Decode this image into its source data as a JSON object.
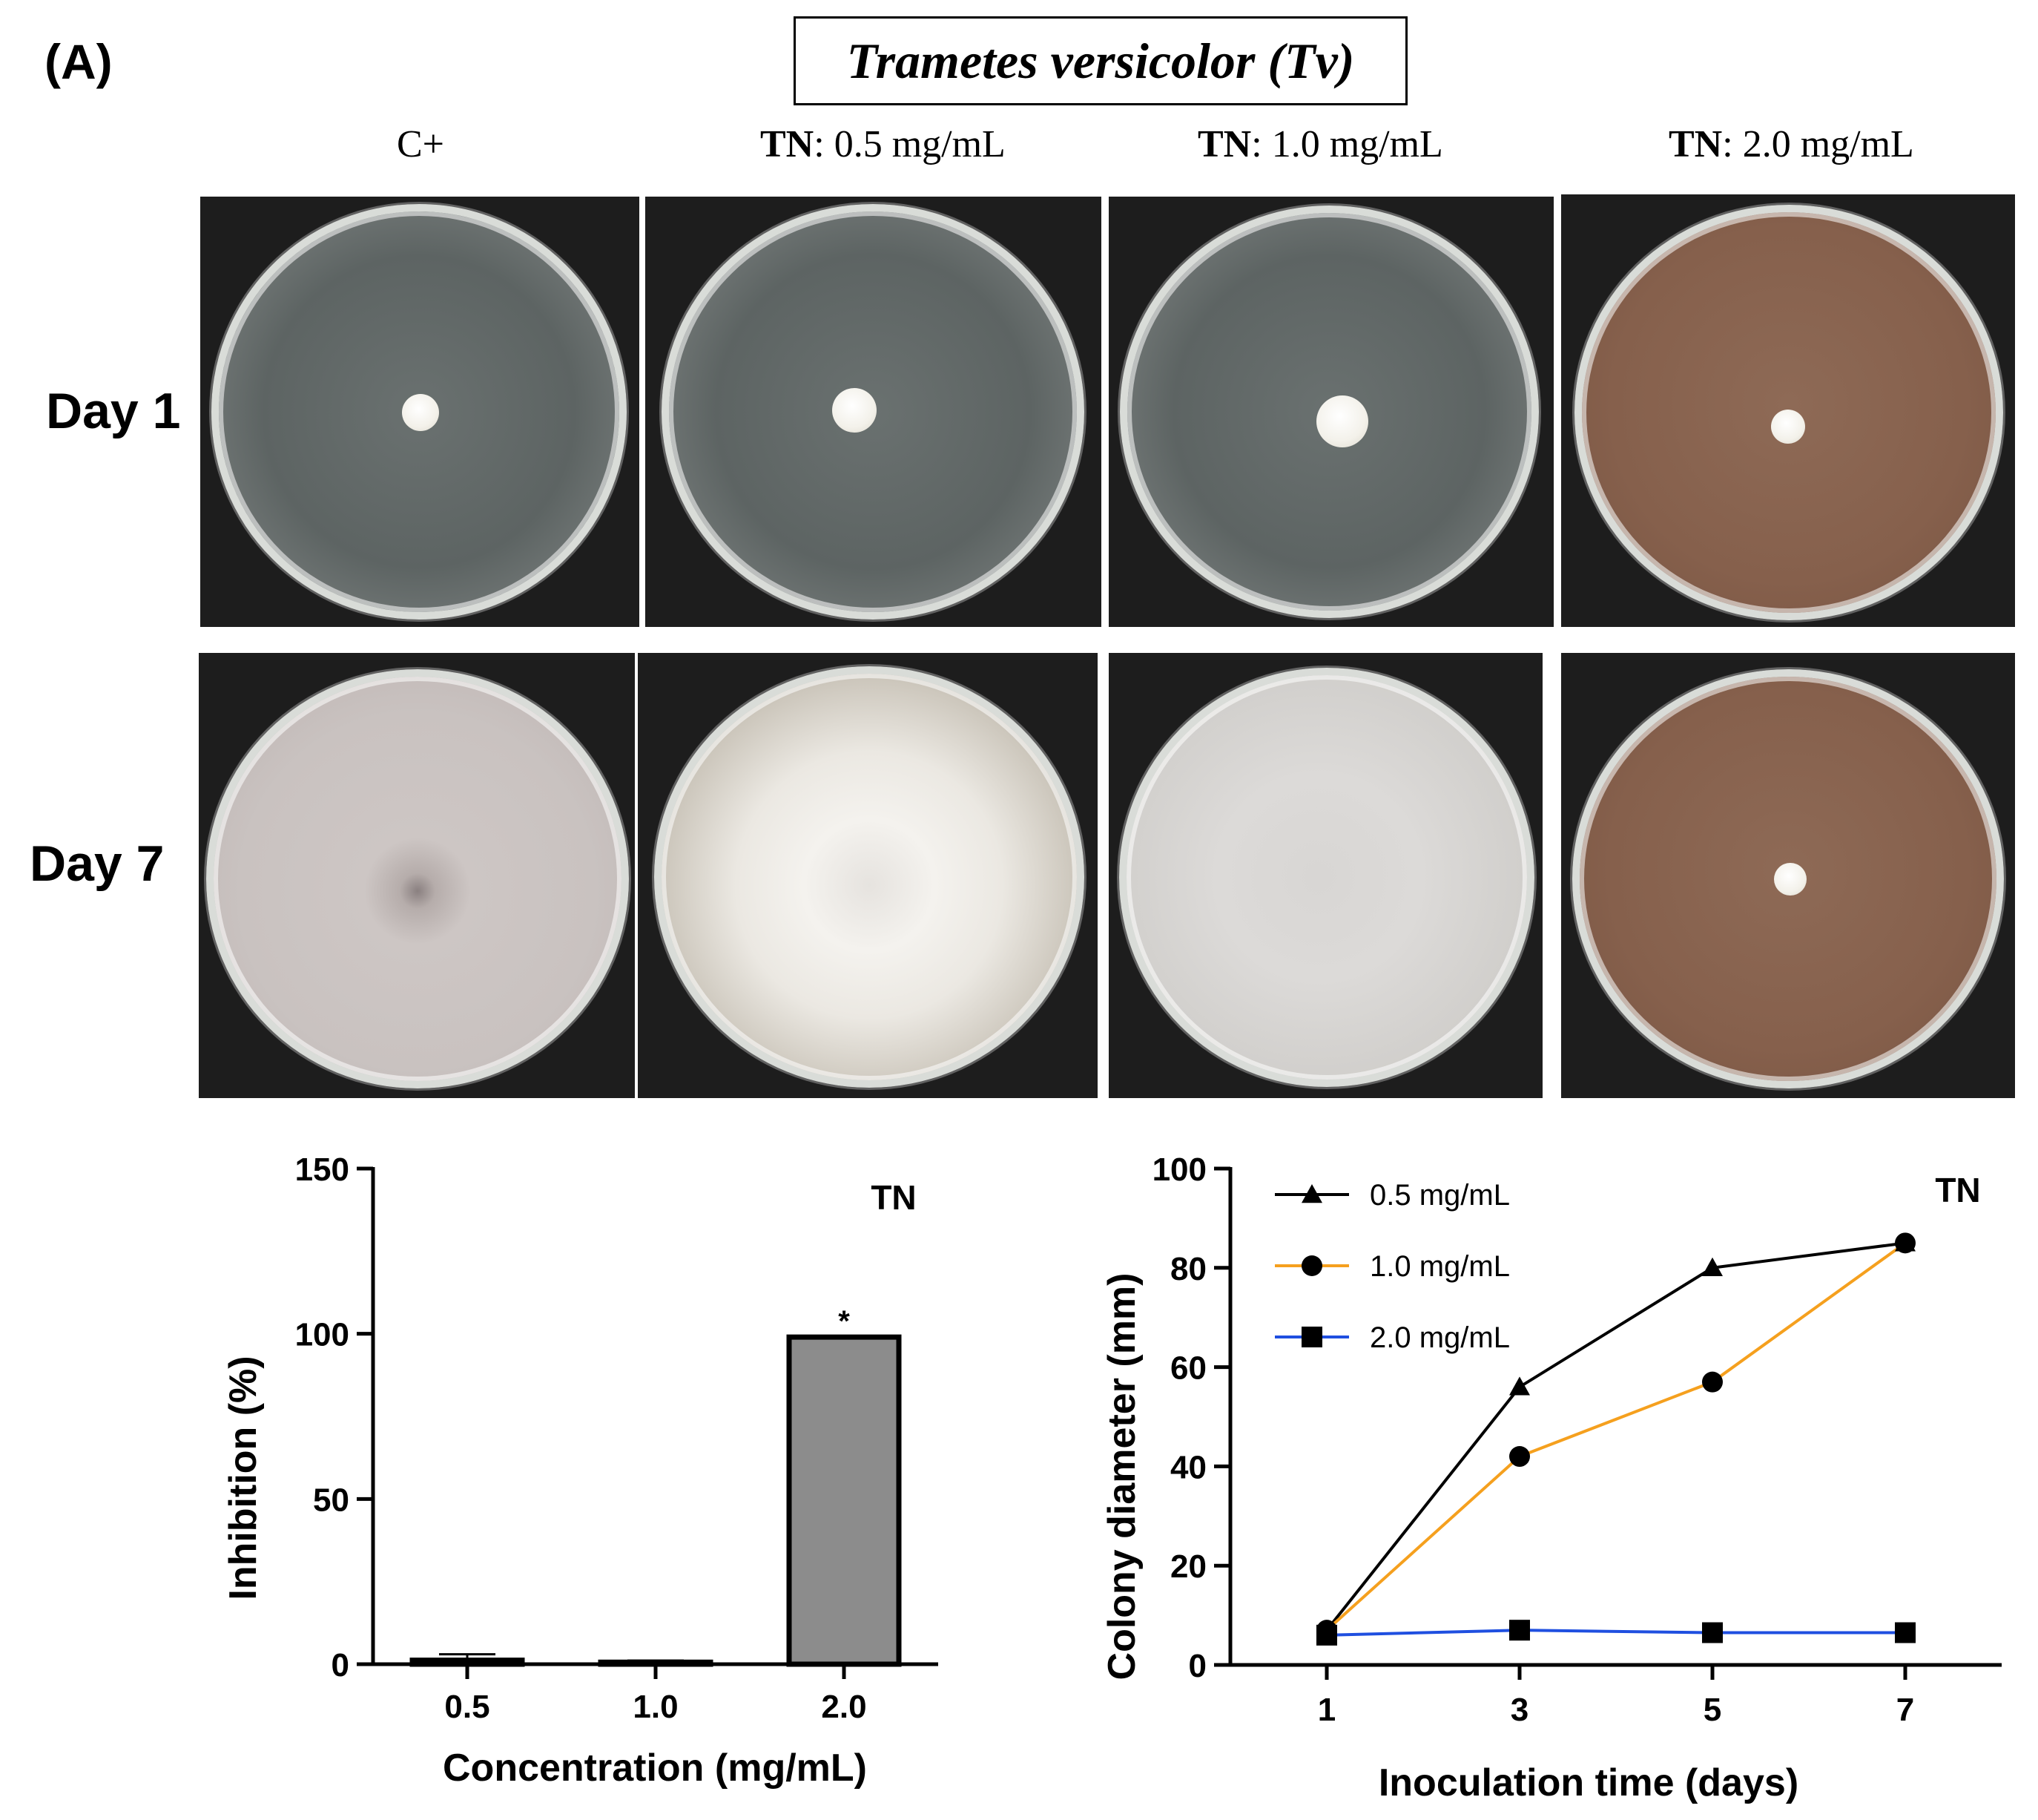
{
  "figure": {
    "panel_label": "(A)",
    "title": "Trametes versicolor (Tv)",
    "columns": [
      {
        "bold": "",
        "rest": "C+"
      },
      {
        "bold": "TN",
        "rest": ": 0.5 mg/mL"
      },
      {
        "bold": "TN",
        "rest": ": 1.0 mg/mL"
      },
      {
        "bold": "TN",
        "rest": ": 2.0 mg/mL"
      }
    ],
    "rows": [
      "Day 1",
      "Day 7"
    ]
  },
  "colors": {
    "series_05": "#000000",
    "series_10": "#f5a01e",
    "series_20": "#1f4fe0",
    "bar_fill": "#8c8c8c"
  },
  "chart_data": [
    {
      "type": "bar",
      "tag": "TN",
      "categories": [
        "0.5",
        "1.0",
        "2.0"
      ],
      "values": [
        1.2,
        0.6,
        99
      ],
      "errors": [
        1.8,
        0.5,
        0
      ],
      "significance": [
        "",
        "",
        "*"
      ],
      "xlabel": "Concentration (mg/mL)",
      "ylabel": "Inhibition (%)",
      "ylim": [
        0,
        150
      ],
      "yticks": [
        0,
        50,
        100,
        150
      ]
    },
    {
      "type": "line",
      "tag": "TN",
      "x": [
        1,
        3,
        5,
        7
      ],
      "xticks": [
        "1",
        "3",
        "5",
        "7"
      ],
      "xlim": [
        0,
        8
      ],
      "series": [
        {
          "name": "0.5 mg/mL",
          "marker": "triangle",
          "values": [
            7,
            56,
            80,
            85
          ]
        },
        {
          "name": "1.0 mg/mL",
          "marker": "circle",
          "values": [
            7,
            42,
            57,
            85
          ]
        },
        {
          "name": "2.0 mg/mL",
          "marker": "square",
          "values": [
            6,
            7,
            6.5,
            6.5
          ]
        }
      ],
      "xlabel": "Inoculation time (days)",
      "ylabel": "Colony diameter (mm)",
      "ylim": [
        0,
        100
      ],
      "yticks": [
        0,
        20,
        40,
        60,
        80,
        100
      ]
    }
  ]
}
